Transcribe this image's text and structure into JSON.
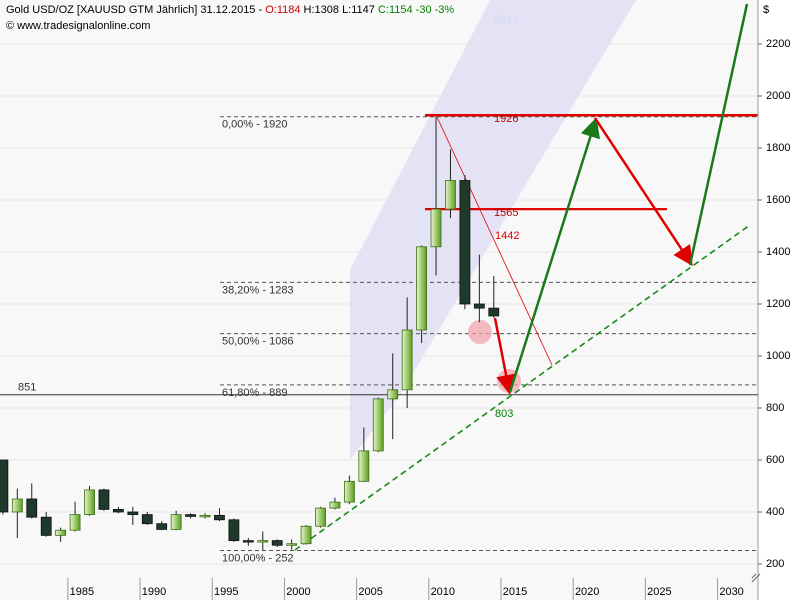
{
  "chart_data": {
    "type": "candlestick",
    "title_parts": [
      {
        "text": "Gold USD/OZ [XAUUSD GTM  Jährlich] 31.12.2015 - ",
        "color": "#000000"
      },
      {
        "text": "O:1184",
        "color": "#d00000"
      },
      {
        "text": " H:1308 L:1147 ",
        "color": "#000000"
      },
      {
        "text": "C:1154 -30 -3%",
        "color": "#008000"
      }
    ],
    "subtitle": "© www.tradesignalonline.com",
    "y_axis_label": "$",
    "x": [
      1981,
      1982,
      1983,
      1984,
      1985,
      1986,
      1987,
      1988,
      1989,
      1990,
      1991,
      1992,
      1993,
      1994,
      1995,
      1996,
      1997,
      1998,
      1999,
      2000,
      2001,
      2002,
      2003,
      2004,
      2005,
      2006,
      2007,
      2008,
      2009,
      2010,
      2011,
      2012,
      2013,
      2014,
      2015
    ],
    "open": [
      600,
      400,
      450,
      380,
      310,
      330,
      390,
      485,
      410,
      400,
      390,
      355,
      333,
      390,
      383,
      387,
      370,
      290,
      288,
      290,
      272,
      278,
      345,
      415,
      438,
      518,
      635,
      835,
      870,
      1100,
      1420,
      1565,
      1675,
      1200,
      1184
    ],
    "high": [
      600,
      490,
      510,
      400,
      340,
      440,
      500,
      490,
      420,
      420,
      400,
      365,
      405,
      395,
      395,
      415,
      375,
      300,
      325,
      295,
      295,
      350,
      420,
      455,
      540,
      725,
      840,
      1010,
      1225,
      1425,
      1920,
      1795,
      1695,
      1390,
      1308
    ],
    "low": [
      390,
      300,
      375,
      305,
      285,
      325,
      385,
      405,
      395,
      350,
      350,
      330,
      330,
      375,
      375,
      365,
      285,
      270,
      252,
      265,
      255,
      275,
      340,
      410,
      430,
      515,
      630,
      680,
      800,
      1050,
      1310,
      1530,
      1180,
      1130,
      1147
    ],
    "close": [
      400,
      450,
      380,
      310,
      330,
      390,
      485,
      410,
      400,
      390,
      355,
      333,
      390,
      383,
      387,
      370,
      290,
      288,
      290,
      272,
      278,
      345,
      415,
      438,
      518,
      635,
      835,
      870,
      1100,
      1420,
      1565,
      1675,
      1200,
      1184,
      1154
    ],
    "up_color": "#8cc63f",
    "down_color": "#1f3a2a",
    "xlim": [
      1980.3,
      2032.8
    ],
    "ylim": [
      61.5,
      2369.2
    ],
    "xticks": [
      1985,
      1990,
      1995,
      2000,
      2005,
      2010,
      2015,
      2020,
      2025,
      2030
    ],
    "yticks": [
      200,
      400,
      600,
      800,
      1000,
      1200,
      1400,
      1600,
      1800,
      2000,
      2200
    ],
    "grid": true,
    "fib_levels": [
      {
        "value": 1920,
        "label": "0,00% - 1920"
      },
      {
        "value": 1283,
        "label": "38,20% - 1283"
      },
      {
        "value": 1086,
        "label": "50,00% - 1086"
      },
      {
        "value": 889,
        "label": "61,80% - 889"
      },
      {
        "value": 252,
        "label": "100,00% - 252"
      }
    ],
    "levels": [
      {
        "value": 1926,
        "color": "#e00000"
      },
      {
        "value": 1565,
        "color": "#e00000"
      },
      {
        "value": 851,
        "color": "#333333"
      }
    ],
    "price_labels": [
      {
        "value": 1442,
        "color": "#e00000"
      },
      {
        "value": 803,
        "color": "#008000"
      },
      {
        "value": 2314,
        "color": "#d8d8f0"
      }
    ]
  }
}
